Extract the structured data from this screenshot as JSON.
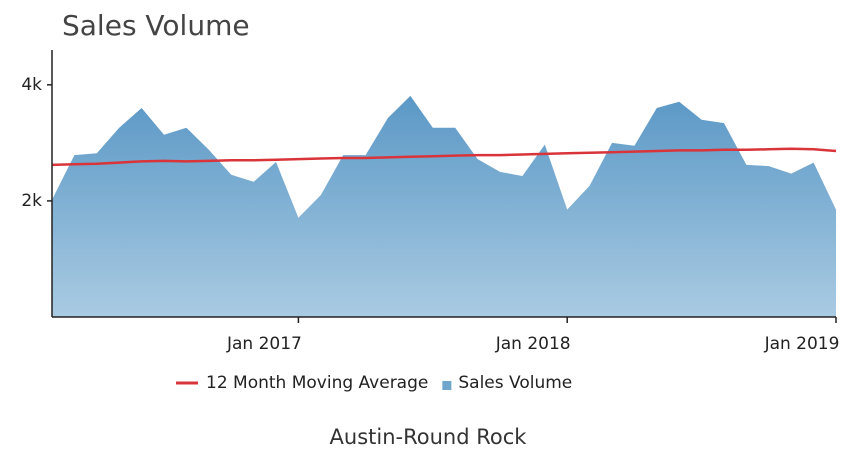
{
  "chart_data": {
    "type": "area",
    "title": "Sales Volume",
    "subtitle": "Austin-Round Rock",
    "x": [
      "2016-02",
      "2016-03",
      "2016-04",
      "2016-05",
      "2016-06",
      "2016-07",
      "2016-08",
      "2016-09",
      "2016-10",
      "2016-11",
      "2016-12",
      "2017-01",
      "2017-02",
      "2017-03",
      "2017-04",
      "2017-05",
      "2017-06",
      "2017-07",
      "2017-08",
      "2017-09",
      "2017-10",
      "2017-11",
      "2017-12",
      "2018-01",
      "2018-02",
      "2018-03",
      "2018-04",
      "2018-05",
      "2018-06",
      "2018-07",
      "2018-08",
      "2018-09",
      "2018-10",
      "2018-11",
      "2018-12",
      "2019-01"
    ],
    "xlim": [
      "2016-02",
      "2019-01"
    ],
    "xticks": [
      {
        "value": "2017-01",
        "label": "Jan 2017"
      },
      {
        "value": "2018-01",
        "label": "Jan 2018"
      },
      {
        "value": "2019-01",
        "label": "Jan 2019"
      }
    ],
    "ylim": [
      0,
      4600
    ],
    "yticks": [
      {
        "value": 2000,
        "label": "2k"
      },
      {
        "value": 4000,
        "label": "4k"
      }
    ],
    "legend": "bottom",
    "series": [
      {
        "name": "12 Month Moving Average",
        "type": "line",
        "color": "#d9343a",
        "values": [
          2620,
          2630,
          2640,
          2660,
          2680,
          2690,
          2680,
          2690,
          2700,
          2700,
          2710,
          2720,
          2730,
          2740,
          2740,
          2750,
          2760,
          2770,
          2780,
          2790,
          2790,
          2800,
          2810,
          2820,
          2830,
          2840,
          2850,
          2860,
          2870,
          2870,
          2880,
          2880,
          2890,
          2900,
          2890,
          2860
        ]
      },
      {
        "name": "Sales Volume",
        "type": "area",
        "color": "#6fa6cc",
        "values": [
          2020,
          2790,
          2820,
          3260,
          3600,
          3140,
          3260,
          2880,
          2450,
          2330,
          2670,
          1710,
          2100,
          2790,
          2790,
          3430,
          3810,
          3260,
          3260,
          2720,
          2500,
          2430,
          2970,
          1850,
          2260,
          3000,
          2950,
          3600,
          3710,
          3400,
          3340,
          2620,
          2600,
          2470,
          2660,
          1850
        ]
      }
    ]
  }
}
